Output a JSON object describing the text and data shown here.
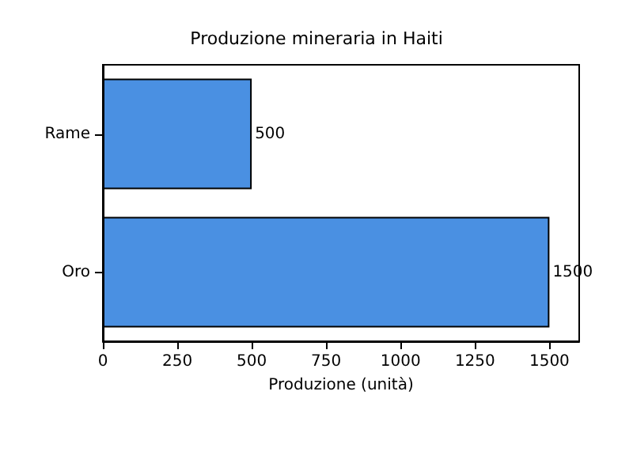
{
  "chart_data": {
    "type": "bar",
    "orientation": "horizontal",
    "title": "Produzione mineraria in Haiti",
    "xlabel": "Produzione (unità)",
    "categories": [
      "Rame",
      "Oro"
    ],
    "values": [
      500,
      1500
    ],
    "color": "#4a90e2",
    "xlim": [
      0,
      1600
    ],
    "xticks": [
      0,
      250,
      500,
      750,
      1000,
      1250,
      1500
    ],
    "data_labels": true,
    "grid": false
  }
}
